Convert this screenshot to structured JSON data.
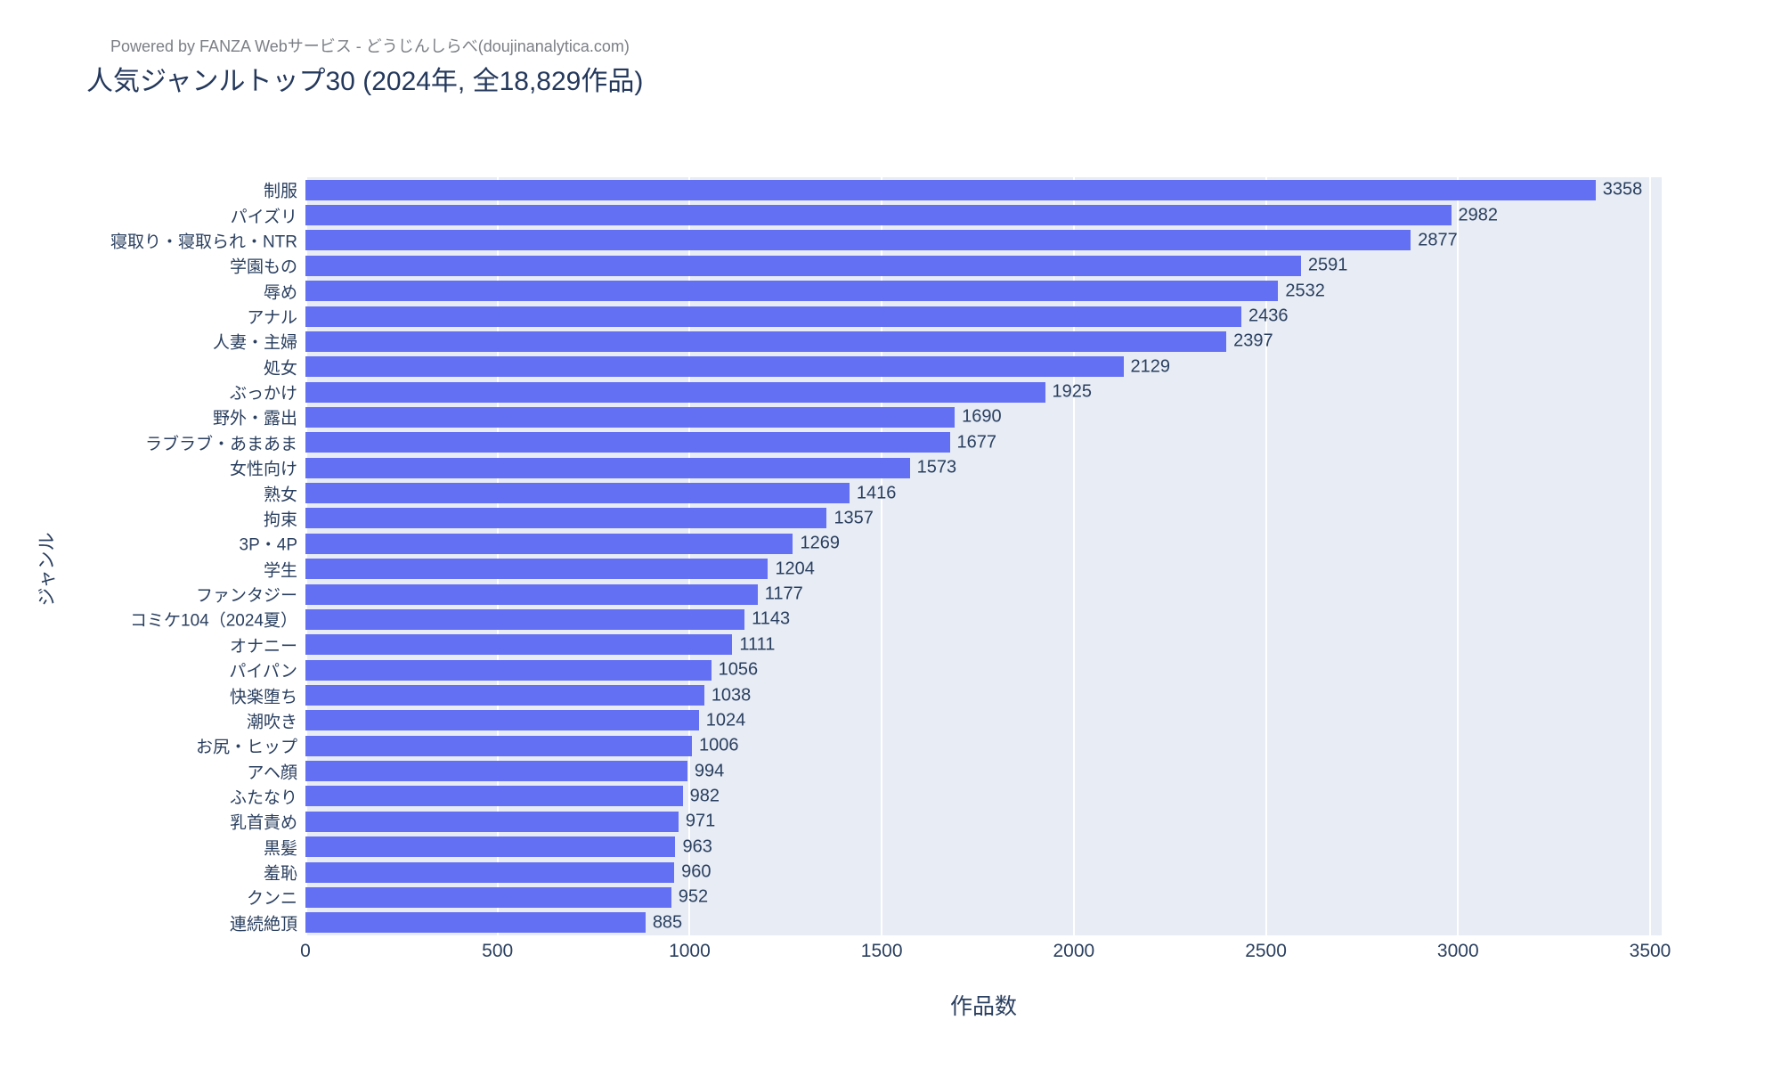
{
  "header": {
    "subtitle": "Powered by FANZA Webサービス - どうじんしらべ(doujinanalytica.com)",
    "title": "人気ジャンルトップ30 (2024年, 全18,829作品)"
  },
  "chart_data": {
    "type": "bar",
    "orientation": "horizontal",
    "title": "人気ジャンルトップ30 (2024年, 全18,829作品)",
    "xlabel": "作品数",
    "ylabel": "ジャンル",
    "xlim": [
      0,
      3500
    ],
    "xticks": [
      0,
      500,
      1000,
      1500,
      2000,
      2500,
      3000,
      3500
    ],
    "grid": true,
    "legend": false,
    "categories": [
      "制服",
      "パイズリ",
      "寝取り・寝取られ・NTR",
      "学園もの",
      "辱め",
      "アナル",
      "人妻・主婦",
      "処女",
      "ぶっかけ",
      "野外・露出",
      "ラブラブ・あまあま",
      "女性向け",
      "熟女",
      "拘束",
      "3P・4P",
      "学生",
      "ファンタジー",
      "コミケ104（2024夏）",
      "オナニー",
      "パイパン",
      "快楽堕ち",
      "潮吹き",
      "お尻・ヒップ",
      "アヘ顔",
      "ふたなり",
      "乳首責め",
      "黒髪",
      "羞恥",
      "クンニ",
      "連続絶頂"
    ],
    "values": [
      3358,
      2982,
      2877,
      2591,
      2532,
      2436,
      2397,
      2129,
      1925,
      1690,
      1677,
      1573,
      1416,
      1357,
      1269,
      1204,
      1177,
      1143,
      1111,
      1056,
      1038,
      1024,
      1006,
      994,
      982,
      971,
      963,
      960,
      952,
      885
    ],
    "colors": {
      "bar": "#6470f3",
      "plot_background": "#e7ecf5",
      "gridline": "#ffffff",
      "tick_text": "#2a3f5f",
      "title_text": "#24385c",
      "subtitle_text": "#7b7f85"
    }
  }
}
